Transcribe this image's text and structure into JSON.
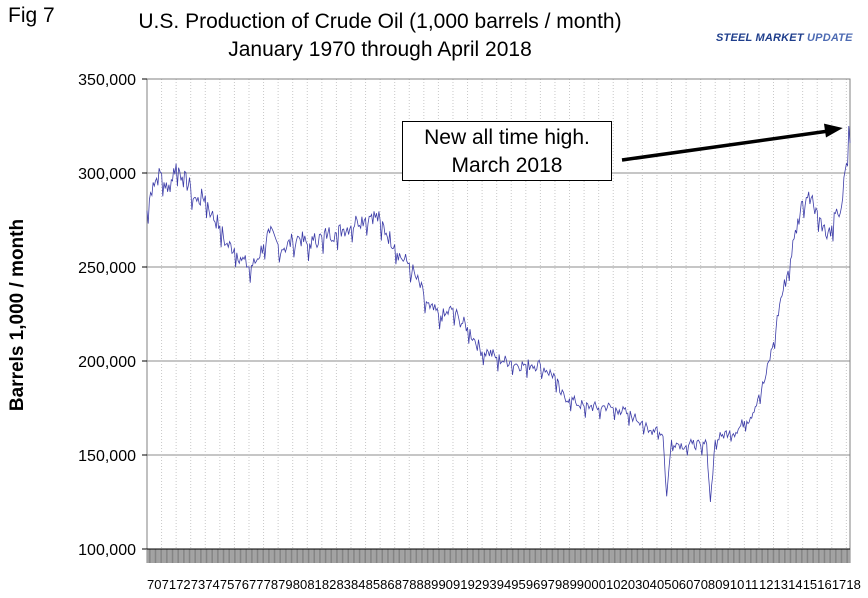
{
  "figure_label": "Fig 7",
  "logo_text": {
    "part1": "STEEL MARKET",
    "part2": " UPDATE"
  },
  "chart_data": {
    "type": "line",
    "title": "U.S. Production of Crude Oil (1,000 barrels / month)",
    "subtitle": "January 1970 through April 2018",
    "ylabel": "Barrels 1,000 / month",
    "xlabel": "",
    "ylim": [
      100000,
      350000
    ],
    "ytick_labels": [
      "350,000",
      "300,000",
      "250,000",
      "200,000",
      "150,000",
      "100,000"
    ],
    "xtick_labels": [
      "70",
      "71",
      "72",
      "73",
      "74",
      "75",
      "76",
      "77",
      "78",
      "79",
      "80",
      "81",
      "82",
      "83",
      "84",
      "85",
      "86",
      "87",
      "88",
      "89",
      "90",
      "91",
      "92",
      "93",
      "94",
      "95",
      "96",
      "97",
      "98",
      "99",
      "00",
      "01",
      "02",
      "03",
      "04",
      "05",
      "06",
      "07",
      "08",
      "09",
      "10",
      "11",
      "12",
      "13",
      "14",
      "15",
      "16",
      "17",
      "18"
    ],
    "x_range": [
      "1970-01",
      "2018-04"
    ],
    "series": [
      {
        "color": "#3d3da8",
        "x": [
          "1970-01",
          "1970-06",
          "1971-01",
          "1971-06",
          "1972-01",
          "1972-06",
          "1973-01",
          "1973-06",
          "1974-01",
          "1974-06",
          "1975-01",
          "1975-06",
          "1976-01",
          "1976-06",
          "1977-01",
          "1977-06",
          "1978-01",
          "1978-06",
          "1979-01",
          "1979-06",
          "1980-01",
          "1980-06",
          "1981-01",
          "1981-06",
          "1982-01",
          "1982-06",
          "1983-01",
          "1983-06",
          "1984-01",
          "1984-06",
          "1985-01",
          "1985-06",
          "1986-01",
          "1986-06",
          "1987-01",
          "1987-06",
          "1988-01",
          "1988-06",
          "1989-01",
          "1989-06",
          "1990-01",
          "1990-06",
          "1991-01",
          "1991-06",
          "1992-01",
          "1992-06",
          "1993-01",
          "1993-06",
          "1994-01",
          "1994-06",
          "1995-01",
          "1995-06",
          "1996-01",
          "1996-06",
          "1997-01",
          "1997-06",
          "1998-01",
          "1998-06",
          "1999-01",
          "1999-06",
          "2000-01",
          "2000-06",
          "2001-01",
          "2001-06",
          "2002-01",
          "2002-06",
          "2003-01",
          "2003-06",
          "2004-01",
          "2004-06",
          "2005-01",
          "2005-06",
          "2005-09",
          "2006-01",
          "2006-06",
          "2007-01",
          "2007-06",
          "2008-01",
          "2008-06",
          "2008-09",
          "2009-01",
          "2009-06",
          "2010-01",
          "2010-06",
          "2011-01",
          "2011-06",
          "2012-01",
          "2012-06",
          "2013-01",
          "2013-06",
          "2014-01",
          "2014-06",
          "2015-01",
          "2015-06",
          "2016-01",
          "2016-06",
          "2016-09",
          "2017-01",
          "2017-06",
          "2017-09",
          "2018-01",
          "2018-03",
          "2018-04"
        ],
        "y": [
          280000,
          295000,
          300000,
          290000,
          305000,
          298000,
          292000,
          285000,
          288000,
          278000,
          272000,
          262000,
          260000,
          255000,
          250000,
          252000,
          262000,
          268000,
          262000,
          260000,
          264000,
          266000,
          262000,
          264000,
          266000,
          268000,
          268000,
          270000,
          272000,
          275000,
          276000,
          278000,
          275000,
          268000,
          262000,
          255000,
          252000,
          245000,
          235000,
          228000,
          225000,
          224000,
          228000,
          222000,
          218000,
          212000,
          205000,
          205000,
          202000,
          200000,
          200000,
          198000,
          198000,
          198000,
          198000,
          195000,
          192000,
          182000,
          180000,
          178000,
          176000,
          176000,
          175000,
          176000,
          175000,
          174000,
          172000,
          170000,
          168000,
          162000,
          165000,
          160000,
          128000,
          158000,
          156000,
          155000,
          156000,
          155000,
          156000,
          125000,
          158000,
          160000,
          163000,
          162000,
          168000,
          170000,
          182000,
          190000,
          210000,
          230000,
          248000,
          265000,
          285000,
          290000,
          280000,
          272000,
          265000,
          272000,
          278000,
          282000,
          305000,
          325000,
          316000
        ]
      }
    ],
    "annotation": {
      "line1": "New all time high.",
      "line2": "March 2018"
    },
    "grid": true
  }
}
